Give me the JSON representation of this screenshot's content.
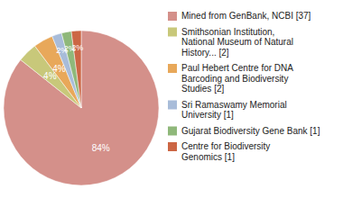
{
  "chart_data": {
    "type": "pie",
    "categories": [
      "Mined from GenBank, NCBI [37]",
      "Smithsonian Institution,\nNational Museum of Natural\nHistory... [2]",
      "Paul Hebert Centre for DNA\nBarcoding and Biodiversity\nStudies [2]",
      "Sri Ramaswamy Memorial\nUniversity [1]",
      "Gujarat Biodiversity Gene Bank [1]",
      "Centre for Biodiversity\nGenomics [1]"
    ],
    "values": [
      84,
      4,
      4,
      2,
      2,
      2
    ],
    "value_labels": [
      "84%",
      "4%",
      "4%",
      "2%",
      "2%",
      "2%"
    ],
    "colors": [
      "#d4908a",
      "#c8c87a",
      "#e8a85a",
      "#a8bcd9",
      "#8fb87a",
      "#cc6644"
    ],
    "data_labels": true,
    "legend": "right"
  }
}
